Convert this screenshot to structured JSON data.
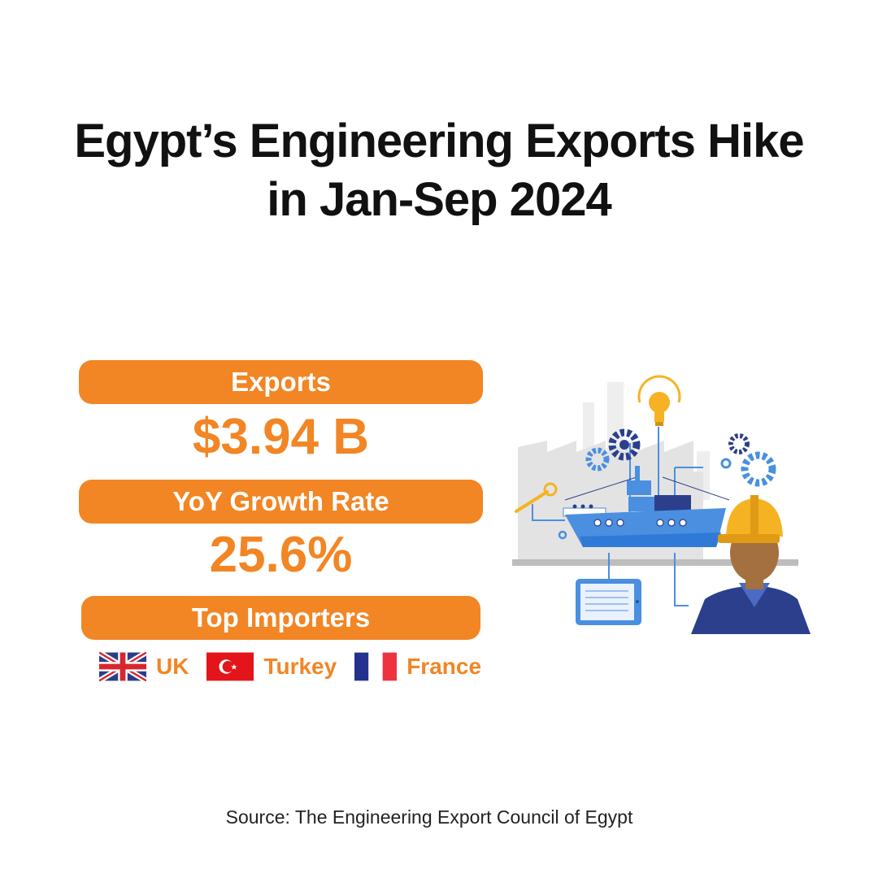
{
  "title": {
    "line1": "Egypt’s Engineering Exports Hike",
    "line2": "in Jan-Sep 2024"
  },
  "stats": {
    "exports_label": "Exports",
    "exports_value": "$3.94 B",
    "growth_label": "YoY Growth Rate",
    "growth_value": "25.6%",
    "importers_label": "Top Importers"
  },
  "importers": [
    {
      "name": "UK",
      "flag": "uk-flag"
    },
    {
      "name": "Turkey",
      "flag": "turkey-flag"
    },
    {
      "name": "France",
      "flag": "france-flag"
    }
  ],
  "source": "Source: The Engineering Export Council of Egypt",
  "colors": {
    "accent": "#f28524",
    "title": "#111111",
    "ship_blue": "#4a8fe0",
    "navy": "#2c3f8c",
    "helmet_yellow": "#f5b324"
  }
}
